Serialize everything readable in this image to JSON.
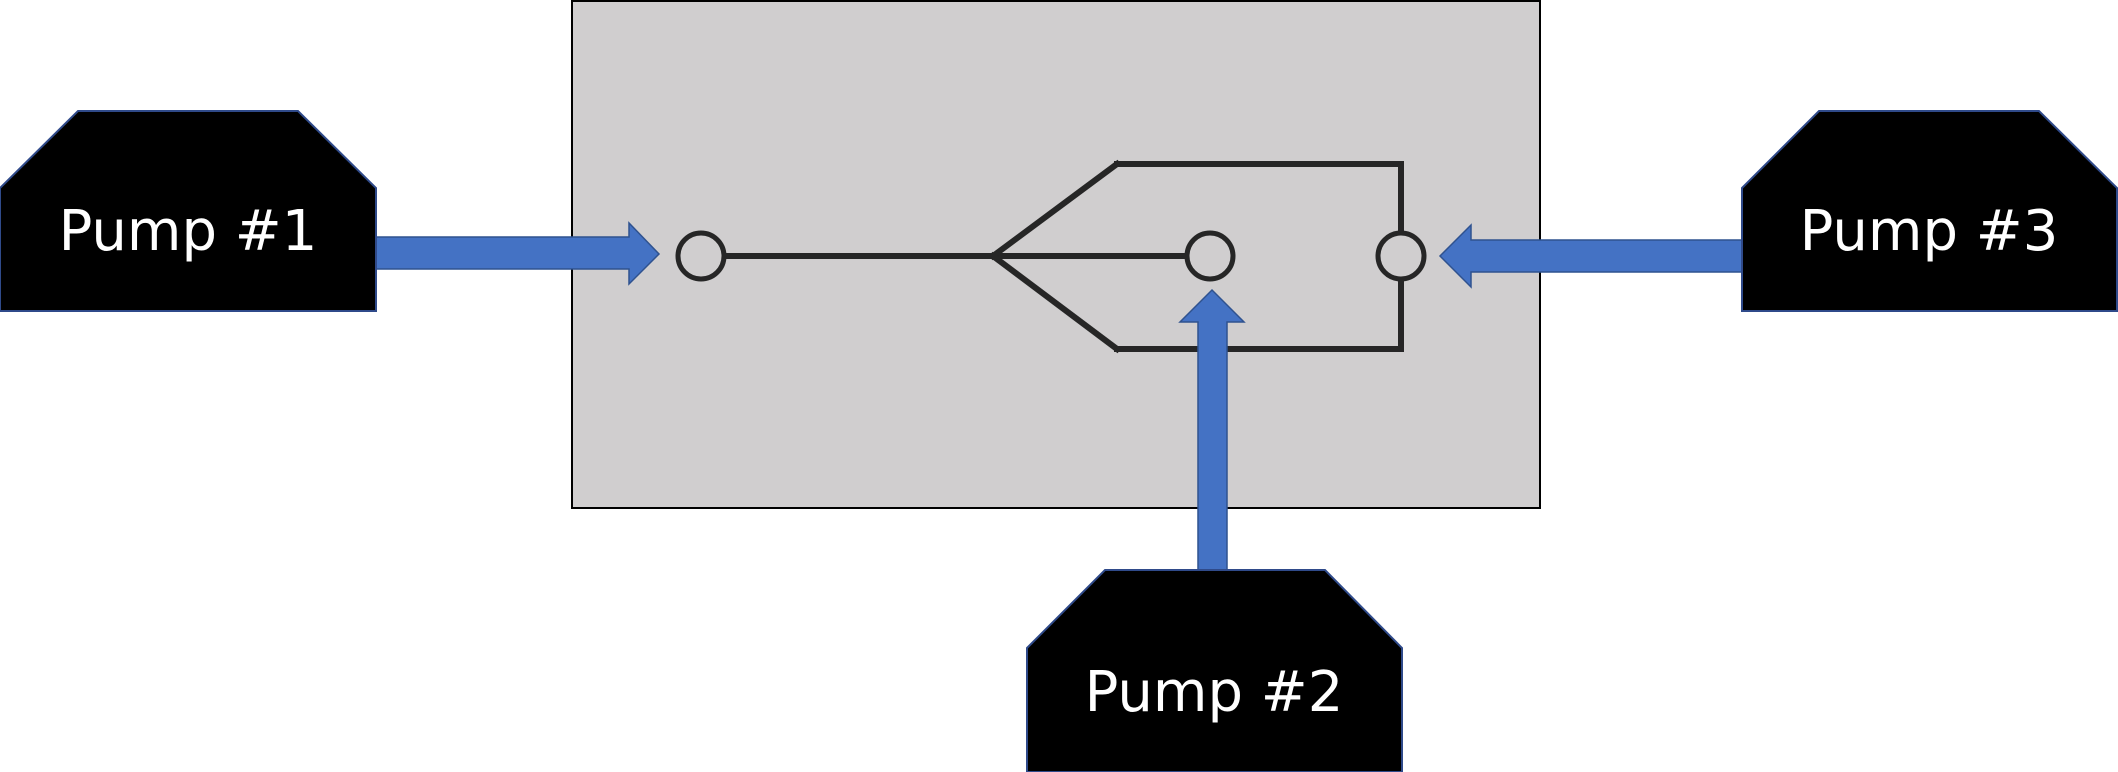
{
  "colors": {
    "background": "#ffffff",
    "chamber_fill": "#d0cecf",
    "chamber_border": "#000000",
    "pump_fill": "#000000",
    "pump_border": "#2f4a8a",
    "pump_text": "#ffffff",
    "arrow": "#4472c4",
    "arrow_border": "#2f528f",
    "pipe": "#262626"
  },
  "pumps": [
    {
      "label": "Pump #1"
    },
    {
      "label": "Pump #2"
    },
    {
      "label": "Pump #3"
    }
  ]
}
